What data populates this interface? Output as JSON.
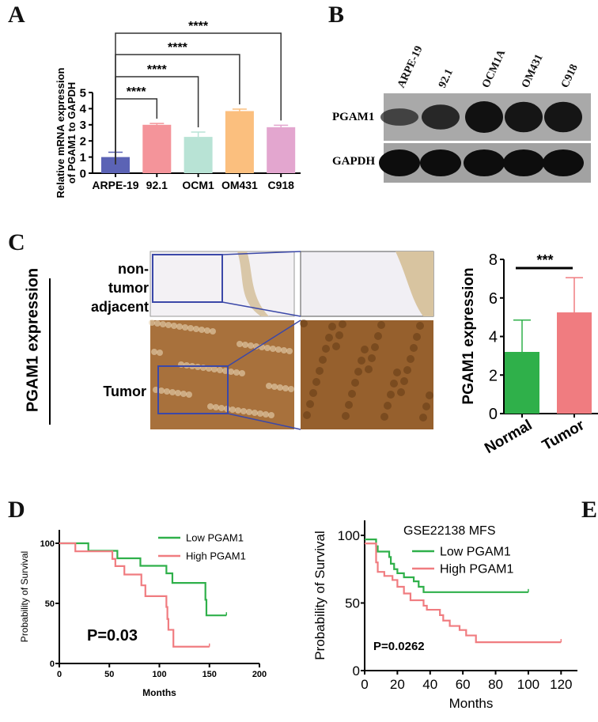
{
  "panels": {
    "a": "A",
    "b": "B",
    "c": "C",
    "d": "D",
    "e": "E"
  },
  "blot": {
    "lanes": [
      "ARPE-19",
      "92.1",
      "OCM1A",
      "OM431",
      "C918"
    ],
    "rows": [
      "PGAM1",
      "GAPDH"
    ],
    "pgam1_intensity": [
      0.35,
      0.7,
      1,
      0.95,
      0.95
    ]
  },
  "ihc": {
    "side_label": "PGAM1 expression",
    "row1": "non-tumor adjacent",
    "row2": "Tumor"
  },
  "chart_data": [
    {
      "type": "bar",
      "panel": "A",
      "ylabel": "Relative mRNA expression of PGAM1 to GAPDH",
      "categories": [
        "ARPE-19",
        "92.1",
        "OCM1",
        "OM431",
        "C918"
      ],
      "values": [
        1.0,
        3.0,
        2.25,
        3.85,
        2.85
      ],
      "errors": [
        0.3,
        0.08,
        0.3,
        0.12,
        0.12
      ],
      "colors": [
        "#5b63b5",
        "#f4949a",
        "#b8e3d5",
        "#fbbf7e",
        "#e3a6cf"
      ],
      "ylim": [
        0,
        5
      ],
      "yticks": [
        "0",
        "1",
        "2",
        "3",
        "4",
        "5"
      ],
      "significance": [
        {
          "from": "ARPE-19",
          "to": "92.1",
          "label": "****"
        },
        {
          "from": "ARPE-19",
          "to": "OCM1",
          "label": "****"
        },
        {
          "from": "ARPE-19",
          "to": "OM431",
          "label": "****"
        },
        {
          "from": "ARPE-19",
          "to": "C918",
          "label": "****"
        }
      ]
    },
    {
      "type": "bar",
      "panel": "C",
      "ylabel": "PGAM1 expression",
      "categories": [
        "Normal",
        "Tumor"
      ],
      "values": [
        3.2,
        5.25
      ],
      "errors": [
        1.65,
        1.8
      ],
      "colors": [
        "#2fb04a",
        "#f07c80"
      ],
      "ylim": [
        0,
        8
      ],
      "yticks": [
        "0",
        "2",
        "4",
        "6",
        "8"
      ],
      "significance": [
        {
          "from": "Normal",
          "to": "Tumor",
          "label": "***"
        }
      ]
    },
    {
      "type": "line",
      "panel": "D",
      "xlabel": "Months",
      "ylabel": "Probability of Survival",
      "xlim": [
        0,
        200
      ],
      "ylim": [
        0,
        100
      ],
      "xticks": [
        "0",
        "50",
        "100",
        "150",
        "200"
      ],
      "yticks": [
        "0",
        "50",
        "100"
      ],
      "annotation": "P=0.03",
      "legend": "top-right",
      "series": [
        {
          "name": "Low PGAM1",
          "color": "#2fb04a",
          "steps": [
            [
              0,
              100
            ],
            [
              29,
              93.75
            ],
            [
              58,
              87.5
            ],
            [
              81,
              81.25
            ],
            [
              107,
              75
            ],
            [
              113,
              67
            ],
            [
              146,
              53
            ],
            [
              147,
              40
            ],
            [
              167,
              40
            ]
          ]
        },
        {
          "name": "High PGAM1",
          "color": "#f07c80",
          "steps": [
            [
              0,
              100
            ],
            [
              16,
              93.3
            ],
            [
              53,
              87
            ],
            [
              56,
              81
            ],
            [
              65,
              74
            ],
            [
              82,
              65
            ],
            [
              86,
              56
            ],
            [
              107,
              47
            ],
            [
              108,
              37
            ],
            [
              109,
              28
            ],
            [
              114,
              14
            ],
            [
              150,
              14
            ]
          ]
        }
      ]
    },
    {
      "type": "line",
      "panel": "E",
      "title": "GSE22138  MFS",
      "xlabel": "Months",
      "ylabel": "Probability of Survival",
      "xlim": [
        0,
        130
      ],
      "ylim": [
        0,
        110
      ],
      "xticks": [
        "0",
        "20",
        "40",
        "60",
        "80",
        "100",
        "120"
      ],
      "yticks": [
        "0",
        "50",
        "100"
      ],
      "annotation": "P=0.0262",
      "legend": "top-right",
      "series": [
        {
          "name": "Low PGAM1",
          "color": "#2fb04a",
          "steps": [
            [
              0,
              97
            ],
            [
              7,
              92
            ],
            [
              8,
              88
            ],
            [
              15,
              84
            ],
            [
              16,
              79
            ],
            [
              18,
              75
            ],
            [
              20,
              72
            ],
            [
              24,
              69
            ],
            [
              30,
              66
            ],
            [
              33,
              62
            ],
            [
              36,
              58
            ],
            [
              100,
              58
            ]
          ]
        },
        {
          "name": "High PGAM1",
          "color": "#f07c80",
          "steps": [
            [
              0,
              94
            ],
            [
              7,
              80
            ],
            [
              8,
              73
            ],
            [
              12,
              70
            ],
            [
              17,
              67
            ],
            [
              20,
              62
            ],
            [
              24,
              57
            ],
            [
              28,
              52
            ],
            [
              36,
              48
            ],
            [
              38,
              45
            ],
            [
              46,
              41
            ],
            [
              48,
              37
            ],
            [
              52,
              33
            ],
            [
              58,
              30
            ],
            [
              62,
              26
            ],
            [
              68,
              21
            ],
            [
              120,
              21
            ]
          ]
        }
      ]
    }
  ]
}
